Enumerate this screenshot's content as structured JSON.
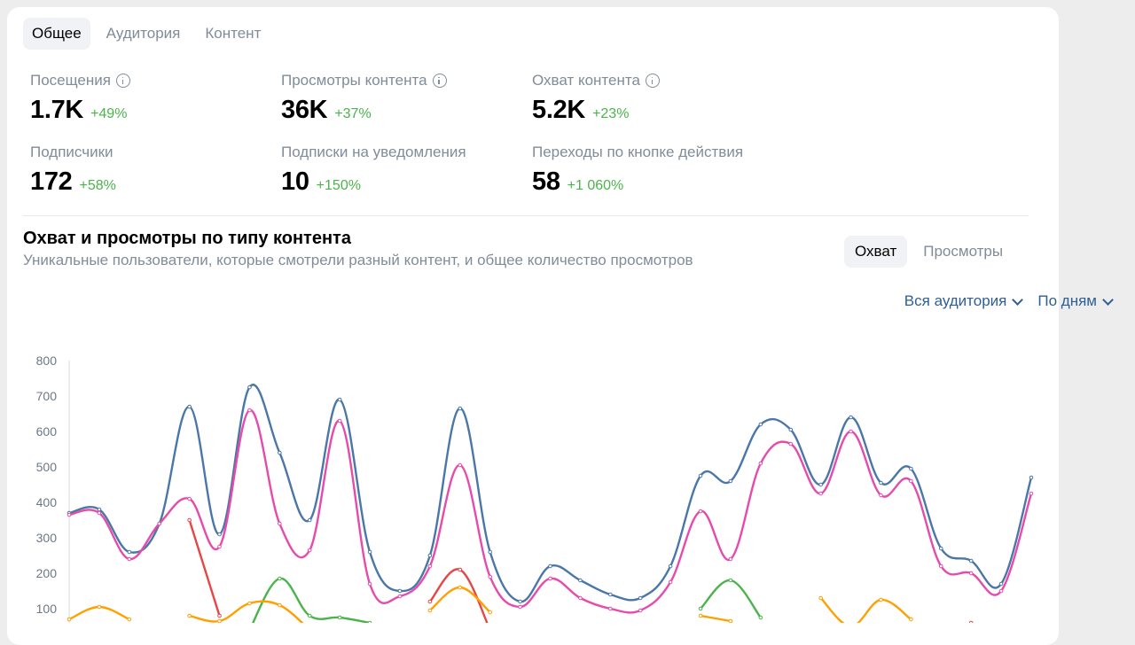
{
  "tabs": [
    {
      "label": "Общее",
      "active": true
    },
    {
      "label": "Аудитория",
      "active": false
    },
    {
      "label": "Контент",
      "active": false
    }
  ],
  "stats": [
    {
      "label": "Посещения",
      "value": "1.7K",
      "delta": "+49%",
      "info": true
    },
    {
      "label": "Просмотры контента",
      "value": "36K",
      "delta": "+37%",
      "info": true
    },
    {
      "label": "Охват контента",
      "value": "5.2K",
      "delta": "+23%",
      "info": true
    },
    {
      "label": "Подписчики",
      "value": "172",
      "delta": "+58%",
      "info": false
    },
    {
      "label": "Подписки на уведомления",
      "value": "10",
      "delta": "+150%",
      "info": false
    },
    {
      "label": "Переходы по кнопке действия",
      "value": "58",
      "delta": "+1 060%",
      "info": false
    }
  ],
  "section": {
    "title": "Охват и просмотры по типу контента",
    "subtitle": "Уникальные пользователи, которые смотрели разный контент, и общее количество просмотров"
  },
  "segment": {
    "options": [
      "Охват",
      "Просмотры"
    ],
    "selected": "Охват"
  },
  "filters": {
    "audience": "Вся аудитория",
    "period": "По дням"
  },
  "colors": {
    "accent": "#2d5f94",
    "positive": "#4bb34b",
    "muted": "#818c99"
  },
  "chart_data": {
    "type": "line",
    "ylim": [
      0,
      800
    ],
    "yticks": [
      100,
      200,
      300,
      400,
      500,
      600,
      700,
      800
    ],
    "x": [
      1,
      2,
      3,
      4,
      5,
      6,
      7,
      8,
      9,
      10,
      11,
      12,
      13,
      14,
      15,
      16,
      17,
      18,
      19,
      20,
      21,
      22,
      23,
      24,
      25,
      26,
      27,
      28,
      29,
      30,
      31,
      32,
      33
    ],
    "series": [
      {
        "color": "#4a76a8",
        "values": [
          370,
          380,
          260,
          340,
          670,
          310,
          725,
          540,
          350,
          690,
          260,
          150,
          250,
          665,
          260,
          120,
          220,
          180,
          140,
          130,
          220,
          475,
          460,
          620,
          605,
          450,
          640,
          455,
          495,
          270,
          235,
          170,
          470
        ]
      },
      {
        "color": "#e64bab",
        "values": [
          365,
          370,
          240,
          340,
          410,
          275,
          660,
          340,
          265,
          630,
          170,
          135,
          220,
          505,
          190,
          105,
          185,
          130,
          100,
          95,
          175,
          375,
          240,
          510,
          565,
          425,
          600,
          420,
          460,
          220,
          200,
          150,
          425
        ]
      },
      {
        "color": "#e64646",
        "values": [
          null,
          null,
          null,
          null,
          350,
          80,
          null,
          null,
          null,
          null,
          null,
          null,
          120,
          210,
          40,
          null,
          null,
          null,
          null,
          null,
          null,
          null,
          null,
          null,
          null,
          null,
          null,
          null,
          null,
          null,
          60,
          null,
          null
        ]
      },
      {
        "color": "#4bb34b",
        "values": [
          null,
          null,
          null,
          null,
          null,
          null,
          40,
          185,
          80,
          75,
          60,
          null,
          null,
          null,
          null,
          null,
          null,
          null,
          null,
          null,
          null,
          100,
          180,
          75,
          null,
          null,
          null,
          null,
          null,
          null,
          null,
          null,
          null
        ]
      },
      {
        "color": "#ffa000",
        "values": [
          70,
          105,
          70,
          null,
          80,
          65,
          115,
          110,
          40,
          null,
          null,
          null,
          95,
          160,
          90,
          null,
          null,
          null,
          null,
          null,
          null,
          80,
          65,
          null,
          null,
          130,
          50,
          125,
          70,
          null,
          null,
          null,
          null
        ]
      }
    ]
  }
}
